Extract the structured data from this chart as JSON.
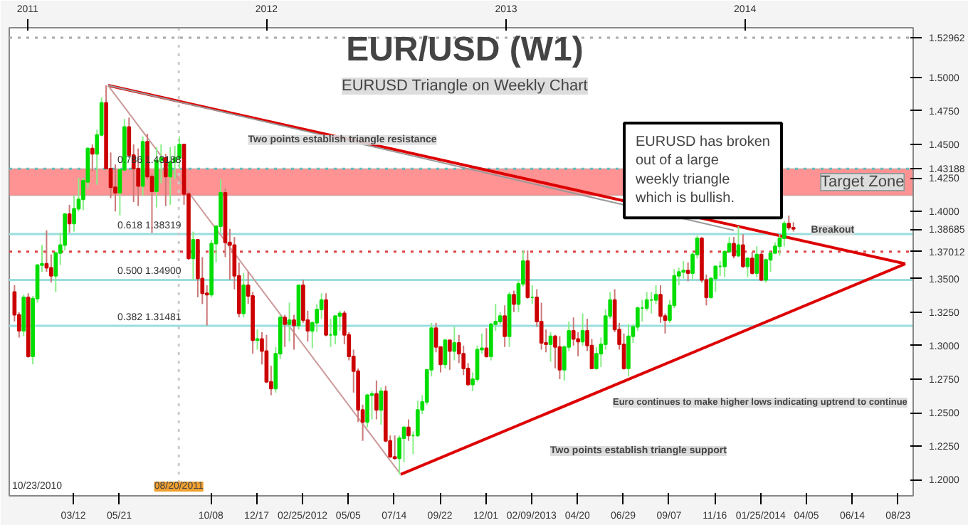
{
  "chart_data": {
    "type": "candlestick",
    "title": "EUR/USD (W1)",
    "subtitle": "EURUSD Triangle on Weekly Chart",
    "x": [
      "2010-12-12",
      "2010-12-19",
      "2010-12-26",
      "2011-01-02",
      "2011-01-09",
      "2011-01-16",
      "2011-01-23",
      "2011-01-30",
      "2011-02-06",
      "2011-02-13",
      "2011-02-20",
      "2011-02-27",
      "2011-03-06",
      "2011-03-13",
      "2011-03-20",
      "2011-03-27",
      "2011-04-03",
      "2011-04-10",
      "2011-04-17",
      "2011-04-24",
      "2011-05-01",
      "2011-05-08",
      "2011-05-15",
      "2011-05-22",
      "2011-05-29",
      "2011-06-05",
      "2011-06-12",
      "2011-06-19",
      "2011-06-26",
      "2011-07-03",
      "2011-07-10",
      "2011-07-17",
      "2011-07-24",
      "2011-07-31",
      "2011-08-07",
      "2011-08-14",
      "2011-08-21",
      "2011-08-28",
      "2011-09-04",
      "2011-09-11",
      "2011-09-18",
      "2011-09-25",
      "2011-10-02",
      "2011-10-09",
      "2011-10-16",
      "2011-10-23",
      "2011-10-30",
      "2011-11-06",
      "2011-11-13",
      "2011-11-20",
      "2011-11-27",
      "2011-12-04",
      "2011-12-11",
      "2011-12-18",
      "2011-12-25",
      "2012-01-01",
      "2012-01-08",
      "2012-01-15",
      "2012-01-22",
      "2012-01-29",
      "2012-02-05",
      "2012-02-12",
      "2012-02-19",
      "2012-02-26",
      "2012-03-04",
      "2012-03-11",
      "2012-03-18",
      "2012-03-25",
      "2012-04-01",
      "2012-04-08",
      "2012-04-15",
      "2012-04-22",
      "2012-04-29",
      "2012-05-06",
      "2012-05-13",
      "2012-05-20",
      "2012-05-27",
      "2012-06-03",
      "2012-06-10",
      "2012-06-17",
      "2012-06-24",
      "2012-07-01",
      "2012-07-08",
      "2012-07-15",
      "2012-07-22",
      "2012-07-29",
      "2012-08-05",
      "2012-08-12",
      "2012-08-19",
      "2012-08-26",
      "2012-09-02",
      "2012-09-09",
      "2012-09-16",
      "2012-09-23",
      "2012-09-30",
      "2012-10-07",
      "2012-10-14",
      "2012-10-21",
      "2012-10-28",
      "2012-11-04",
      "2012-11-11",
      "2012-11-18",
      "2012-11-25",
      "2012-12-02",
      "2012-12-09",
      "2012-12-16",
      "2012-12-23",
      "2012-12-30",
      "2013-01-06",
      "2013-01-13",
      "2013-01-20",
      "2013-01-27",
      "2013-02-03",
      "2013-02-10",
      "2013-02-17",
      "2013-02-24",
      "2013-03-03",
      "2013-03-10",
      "2013-03-17",
      "2013-03-24",
      "2013-03-31",
      "2013-04-07",
      "2013-04-14",
      "2013-04-21",
      "2013-04-28",
      "2013-05-05",
      "2013-05-12",
      "2013-05-19",
      "2013-05-26",
      "2013-06-02",
      "2013-06-09",
      "2013-06-16",
      "2013-06-23",
      "2013-06-30",
      "2013-07-07",
      "2013-07-14",
      "2013-07-21",
      "2013-07-28",
      "2013-08-04",
      "2013-08-11",
      "2013-08-18",
      "2013-08-25",
      "2013-09-01",
      "2013-09-08",
      "2013-09-15",
      "2013-09-22",
      "2013-09-29",
      "2013-10-06",
      "2013-10-13",
      "2013-10-20",
      "2013-10-27",
      "2013-11-03",
      "2013-11-10",
      "2013-11-17",
      "2013-11-24",
      "2013-12-01",
      "2013-12-08",
      "2013-12-15",
      "2013-12-22",
      "2013-12-29",
      "2014-01-05",
      "2014-01-12",
      "2014-01-19",
      "2014-01-26",
      "2014-02-02",
      "2014-02-09",
      "2014-02-16",
      "2014-02-23",
      "2014-03-02",
      "2014-03-09",
      "2014-03-16"
    ],
    "ohlc": [
      [
        1.34,
        1.345,
        1.318,
        1.323
      ],
      [
        1.323,
        1.325,
        1.306,
        1.311
      ],
      [
        1.311,
        1.338,
        1.307,
        1.336
      ],
      [
        1.336,
        1.339,
        1.291,
        1.292
      ],
      [
        1.292,
        1.337,
        1.286,
        1.335
      ],
      [
        1.335,
        1.361,
        1.332,
        1.36
      ],
      [
        1.36,
        1.375,
        1.355,
        1.361
      ],
      [
        1.361,
        1.386,
        1.355,
        1.358
      ],
      [
        1.358,
        1.368,
        1.347,
        1.352
      ],
      [
        1.352,
        1.37,
        1.34,
        1.369
      ],
      [
        1.369,
        1.384,
        1.36,
        1.375
      ],
      [
        1.375,
        1.399,
        1.371,
        1.398
      ],
      [
        1.398,
        1.405,
        1.384,
        1.391
      ],
      [
        1.391,
        1.412,
        1.385,
        1.402
      ],
      [
        1.402,
        1.425,
        1.4,
        1.409
      ],
      [
        1.409,
        1.425,
        1.401,
        1.423
      ],
      [
        1.422,
        1.448,
        1.417,
        1.447
      ],
      [
        1.447,
        1.45,
        1.43,
        1.443
      ],
      [
        1.443,
        1.461,
        1.42,
        1.457
      ],
      [
        1.457,
        1.485,
        1.456,
        1.481
      ],
      [
        1.481,
        1.494,
        1.432,
        1.432
      ],
      [
        1.432,
        1.444,
        1.41,
        1.418
      ],
      [
        1.418,
        1.435,
        1.4,
        1.414
      ],
      [
        1.414,
        1.432,
        1.397,
        1.431
      ],
      [
        1.431,
        1.469,
        1.43,
        1.463
      ],
      [
        1.463,
        1.47,
        1.44,
        1.442
      ],
      [
        1.442,
        1.45,
        1.407,
        1.432
      ],
      [
        1.432,
        1.447,
        1.404,
        1.419
      ],
      [
        1.419,
        1.456,
        1.412,
        1.452
      ],
      [
        1.452,
        1.458,
        1.424,
        1.426
      ],
      [
        1.426,
        1.428,
        1.384,
        1.415
      ],
      [
        1.415,
        1.448,
        1.403,
        1.438
      ],
      [
        1.438,
        1.45,
        1.421,
        1.44
      ],
      [
        1.44,
        1.443,
        1.404,
        1.426
      ],
      [
        1.426,
        1.448,
        1.405,
        1.437
      ],
      [
        1.437,
        1.449,
        1.424,
        1.44
      ],
      [
        1.44,
        1.456,
        1.432,
        1.45
      ],
      [
        1.45,
        1.45,
        1.405,
        1.413
      ],
      [
        1.413,
        1.414,
        1.364,
        1.365
      ],
      [
        1.365,
        1.385,
        1.349,
        1.379
      ],
      [
        1.379,
        1.379,
        1.336,
        1.35
      ],
      [
        1.35,
        1.366,
        1.331,
        1.339
      ],
      [
        1.339,
        1.345,
        1.315,
        1.338
      ],
      [
        1.338,
        1.379,
        1.336,
        1.376
      ],
      [
        1.376,
        1.389,
        1.362,
        1.389
      ],
      [
        1.389,
        1.424,
        1.384,
        1.414
      ],
      [
        1.414,
        1.417,
        1.366,
        1.377
      ],
      [
        1.377,
        1.387,
        1.349,
        1.375
      ],
      [
        1.375,
        1.381,
        1.342,
        1.352
      ],
      [
        1.352,
        1.362,
        1.321,
        1.324
      ],
      [
        1.324,
        1.354,
        1.321,
        1.345
      ],
      [
        1.345,
        1.355,
        1.331,
        1.337
      ],
      [
        1.337,
        1.34,
        1.294,
        1.304
      ],
      [
        1.304,
        1.312,
        1.297,
        1.305
      ],
      [
        1.305,
        1.31,
        1.286,
        1.296
      ],
      [
        1.296,
        1.308,
        1.272,
        1.273
      ],
      [
        1.273,
        1.285,
        1.263,
        1.268
      ],
      [
        1.268,
        1.299,
        1.265,
        1.294
      ],
      [
        1.294,
        1.323,
        1.29,
        1.321
      ],
      [
        1.321,
        1.323,
        1.299,
        1.316
      ],
      [
        1.316,
        1.332,
        1.303,
        1.319
      ],
      [
        1.319,
        1.323,
        1.297,
        1.315
      ],
      [
        1.315,
        1.345,
        1.312,
        1.345
      ],
      [
        1.345,
        1.349,
        1.317,
        1.319
      ],
      [
        1.319,
        1.326,
        1.303,
        1.311
      ],
      [
        1.311,
        1.318,
        1.298,
        1.317
      ],
      [
        1.317,
        1.331,
        1.31,
        1.327
      ],
      [
        1.327,
        1.339,
        1.32,
        1.334
      ],
      [
        1.334,
        1.339,
        1.307,
        1.308
      ],
      [
        1.308,
        1.32,
        1.299,
        1.308
      ],
      [
        1.308,
        1.322,
        1.301,
        1.322
      ],
      [
        1.322,
        1.326,
        1.311,
        1.324
      ],
      [
        1.324,
        1.326,
        1.301,
        1.308
      ],
      [
        1.308,
        1.31,
        1.289,
        1.292
      ],
      [
        1.292,
        1.297,
        1.265,
        1.281
      ],
      [
        1.281,
        1.283,
        1.243,
        1.252
      ],
      [
        1.252,
        1.256,
        1.229,
        1.243
      ],
      [
        1.243,
        1.264,
        1.239,
        1.263
      ],
      [
        1.263,
        1.266,
        1.245,
        1.264
      ],
      [
        1.264,
        1.274,
        1.245,
        1.252
      ],
      [
        1.252,
        1.269,
        1.241,
        1.266
      ],
      [
        1.266,
        1.27,
        1.228,
        1.229
      ],
      [
        1.229,
        1.233,
        1.217,
        1.217
      ],
      [
        1.217,
        1.233,
        1.215,
        1.216
      ],
      [
        1.216,
        1.233,
        1.204,
        1.231
      ],
      [
        1.231,
        1.24,
        1.213,
        1.239
      ],
      [
        1.239,
        1.245,
        1.229,
        1.233
      ],
      [
        1.233,
        1.236,
        1.219,
        1.233
      ],
      [
        1.233,
        1.259,
        1.232,
        1.252
      ],
      [
        1.252,
        1.263,
        1.249,
        1.258
      ],
      [
        1.258,
        1.282,
        1.256,
        1.282
      ],
      [
        1.282,
        1.317,
        1.277,
        1.313
      ],
      [
        1.313,
        1.317,
        1.295,
        1.299
      ],
      [
        1.299,
        1.299,
        1.28,
        1.286
      ],
      [
        1.286,
        1.305,
        1.283,
        1.304
      ],
      [
        1.304,
        1.304,
        1.282,
        1.296
      ],
      [
        1.296,
        1.314,
        1.289,
        1.302
      ],
      [
        1.302,
        1.308,
        1.287,
        1.294
      ],
      [
        1.294,
        1.3,
        1.278,
        1.283
      ],
      [
        1.283,
        1.287,
        1.27,
        1.271
      ],
      [
        1.271,
        1.28,
        1.266,
        1.275
      ],
      [
        1.275,
        1.3,
        1.273,
        1.297
      ],
      [
        1.297,
        1.309,
        1.294,
        1.298
      ],
      [
        1.298,
        1.313,
        1.291,
        1.292
      ],
      [
        1.292,
        1.317,
        1.289,
        1.316
      ],
      [
        1.316,
        1.331,
        1.311,
        1.318
      ],
      [
        1.318,
        1.325,
        1.316,
        1.322
      ],
      [
        1.322,
        1.33,
        1.299,
        1.307
      ],
      [
        1.307,
        1.34,
        1.299,
        1.338
      ],
      [
        1.338,
        1.341,
        1.325,
        1.331
      ],
      [
        1.331,
        1.349,
        1.325,
        1.346
      ],
      [
        1.346,
        1.371,
        1.344,
        1.363
      ],
      [
        1.363,
        1.371,
        1.335,
        1.336
      ],
      [
        1.336,
        1.345,
        1.331,
        1.336
      ],
      [
        1.336,
        1.342,
        1.314,
        1.318
      ],
      [
        1.318,
        1.332,
        1.297,
        1.302
      ],
      [
        1.302,
        1.312,
        1.295,
        1.301
      ],
      [
        1.301,
        1.31,
        1.288,
        1.307
      ],
      [
        1.307,
        1.308,
        1.283,
        1.299
      ],
      [
        1.299,
        1.307,
        1.275,
        1.282
      ],
      [
        1.282,
        1.3,
        1.274,
        1.299
      ],
      [
        1.299,
        1.318,
        1.296,
        1.311
      ],
      [
        1.311,
        1.321,
        1.3,
        1.305
      ],
      [
        1.305,
        1.31,
        1.292,
        1.303
      ],
      [
        1.303,
        1.324,
        1.3,
        1.311
      ],
      [
        1.311,
        1.32,
        1.296,
        1.3
      ],
      [
        1.3,
        1.305,
        1.283,
        1.283
      ],
      [
        1.283,
        1.299,
        1.282,
        1.294
      ],
      [
        1.294,
        1.306,
        1.284,
        1.301
      ],
      [
        1.301,
        1.327,
        1.297,
        1.322
      ],
      [
        1.322,
        1.34,
        1.32,
        1.334
      ],
      [
        1.334,
        1.342,
        1.31,
        1.312
      ],
      [
        1.312,
        1.317,
        1.297,
        1.301
      ],
      [
        1.301,
        1.309,
        1.282,
        1.283
      ],
      [
        1.283,
        1.316,
        1.277,
        1.307
      ],
      [
        1.307,
        1.316,
        1.302,
        1.314
      ],
      [
        1.314,
        1.329,
        1.311,
        1.328
      ],
      [
        1.328,
        1.334,
        1.318,
        1.328
      ],
      [
        1.328,
        1.34,
        1.326,
        1.334
      ],
      [
        1.334,
        1.34,
        1.324,
        1.334
      ],
      [
        1.334,
        1.345,
        1.331,
        1.338
      ],
      [
        1.338,
        1.345,
        1.317,
        1.322
      ],
      [
        1.322,
        1.324,
        1.309,
        1.319
      ],
      [
        1.319,
        1.334,
        1.317,
        1.33
      ],
      [
        1.33,
        1.357,
        1.328,
        1.352
      ],
      [
        1.352,
        1.358,
        1.345,
        1.355
      ],
      [
        1.355,
        1.363,
        1.35,
        1.356
      ],
      [
        1.356,
        1.362,
        1.348,
        1.354
      ],
      [
        1.354,
        1.37,
        1.349,
        1.368
      ],
      [
        1.368,
        1.382,
        1.365,
        1.38
      ],
      [
        1.38,
        1.381,
        1.347,
        1.349
      ],
      [
        1.349,
        1.353,
        1.33,
        1.336
      ],
      [
        1.336,
        1.351,
        1.335,
        1.35
      ],
      [
        1.35,
        1.36,
        1.34,
        1.359
      ],
      [
        1.359,
        1.363,
        1.352,
        1.359
      ],
      [
        1.359,
        1.371,
        1.351,
        1.37
      ],
      [
        1.37,
        1.381,
        1.369,
        1.376
      ],
      [
        1.376,
        1.381,
        1.365,
        1.367
      ],
      [
        1.367,
        1.389,
        1.366,
        1.375
      ],
      [
        1.375,
        1.383,
        1.358,
        1.359
      ],
      [
        1.359,
        1.366,
        1.351,
        1.365
      ],
      [
        1.365,
        1.37,
        1.353,
        1.354
      ],
      [
        1.354,
        1.374,
        1.351,
        1.368
      ],
      [
        1.368,
        1.371,
        1.348,
        1.349
      ],
      [
        1.349,
        1.365,
        1.347,
        1.364
      ],
      [
        1.364,
        1.37,
        1.355,
        1.369
      ],
      [
        1.369,
        1.377,
        1.369,
        1.374
      ],
      [
        1.374,
        1.383,
        1.367,
        1.38
      ],
      [
        1.38,
        1.393,
        1.374,
        1.391
      ],
      [
        1.391,
        1.397,
        1.386,
        1.388
      ],
      [
        1.388,
        1.392,
        1.385,
        1.387
      ]
    ],
    "series": [
      {
        "type": "line",
        "color": "#dd0000",
        "x": [
          "2011-05-04",
          "2014-09-03"
        ],
        "values": [
          1.494,
          1.361
        ]
      },
      {
        "type": "line",
        "color": "#dd0000",
        "x": [
          "2012-07-24",
          "2014-09-03"
        ],
        "values": [
          1.204,
          1.361
        ]
      },
      {
        "type": "line",
        "color": "#cc9999",
        "x": [
          "2011-05-04",
          "2012-07-24"
        ],
        "values": [
          1.494,
          1.204
        ]
      },
      {
        "type": "line",
        "color": "#999999",
        "x": [
          "2011-05-04",
          "2013-12-15"
        ],
        "values": [
          1.494,
          1.386
        ]
      }
    ],
    "xlim": [
      "2010-12-04",
      "2014-09-15"
    ],
    "xticks": [
      {
        "value": "2011-03-12",
        "label": "03/12"
      },
      {
        "value": "2011-05-21",
        "label": "05/21"
      },
      {
        "value": "2011-10-08",
        "label": "10/08"
      },
      {
        "value": "2011-12-17",
        "label": "12/17"
      },
      {
        "value": "2012-02-25",
        "label": "02/25/2012"
      },
      {
        "value": "2012-05-05",
        "label": "05/05"
      },
      {
        "value": "2012-07-14",
        "label": "07/14"
      },
      {
        "value": "2012-09-22",
        "label": "09/22"
      },
      {
        "value": "2012-12-01",
        "label": "12/01"
      },
      {
        "value": "2013-02-09",
        "label": "02/09/2013"
      },
      {
        "value": "2013-04-20",
        "label": "04/20"
      },
      {
        "value": "2013-06-29",
        "label": "06/29"
      },
      {
        "value": "2013-09-07",
        "label": "09/07"
      },
      {
        "value": "2013-11-16",
        "label": "11/16"
      },
      {
        "value": "2014-01-25",
        "label": "01/25/2014"
      },
      {
        "value": "2014-04-05",
        "label": "04/05"
      },
      {
        "value": "2014-06-14",
        "label": "06/14"
      },
      {
        "value": "2014-08-23",
        "label": "08/23"
      }
    ],
    "x2lim": [
      "2010-12-04",
      "2014-09-15"
    ],
    "x2ticks": [
      {
        "value": "2011-01-01",
        "label": "2011"
      },
      {
        "value": "2012-01-01",
        "label": "2012"
      },
      {
        "value": "2013-01-01",
        "label": "2013"
      },
      {
        "value": "2014-01-01",
        "label": "2014"
      }
    ],
    "ylim": [
      1.188,
      1.537
    ],
    "yticks": [
      {
        "value": 1.2,
        "label": "1.2000"
      },
      {
        "value": 1.225,
        "label": "1.2250"
      },
      {
        "value": 1.25,
        "label": "1.2500"
      },
      {
        "value": 1.275,
        "label": "1.2750"
      },
      {
        "value": 1.3,
        "label": "1.3000"
      },
      {
        "value": 1.325,
        "label": "1.3250"
      },
      {
        "value": 1.35,
        "label": "1.3500"
      },
      {
        "value": 1.37012,
        "label": "1.37012"
      },
      {
        "value": 1.38685,
        "label": "1.38685"
      },
      {
        "value": 1.4,
        "label": "1.4000"
      },
      {
        "value": 1.425,
        "label": "1.4250"
      },
      {
        "value": 1.43188,
        "label": "1.43188"
      },
      {
        "value": 1.45,
        "label": "1.4500"
      },
      {
        "value": 1.475,
        "label": "1.4750"
      },
      {
        "value": 1.5,
        "label": "1.5000"
      },
      {
        "value": 1.52962,
        "label": "1.52962"
      }
    ],
    "ref_lines": [
      {
        "axis": "y",
        "value": 1.52962,
        "label": null,
        "color": "#aaaaaa",
        "line_style": "dotted"
      },
      {
        "axis": "y",
        "value": 1.43188,
        "label": "0.786 1.43188",
        "color": "#66bbbb",
        "line_style": "dotted"
      },
      {
        "axis": "y",
        "value": 1.38319,
        "label": "0.618 1.38319",
        "color": "#99dddd",
        "line_style": "solid"
      },
      {
        "axis": "y",
        "value": 1.349,
        "label": "0.500 1.34900",
        "color": "#99dddd",
        "line_style": "solid"
      },
      {
        "axis": "y",
        "value": 1.31481,
        "label": "0.382 1.31481",
        "color": "#99dddd",
        "line_style": "solid"
      },
      {
        "axis": "y",
        "value": 1.37012,
        "label": null,
        "color": "#dd4444",
        "line_style": "dotted"
      },
      {
        "axis": "x",
        "value": "2011-08-20",
        "label": "08/20/2011",
        "color": "#cccccc",
        "line_style": "dotted"
      }
    ],
    "bands": [
      {
        "axis": "y",
        "from": 1.412,
        "to": 1.43188,
        "label": "Target Zone",
        "color": "#ff8080"
      }
    ],
    "annotations": [
      "EURUSD has broken out of a large weekly triangle which is bullish.",
      {
        "text": "Two points establish triangle resistance",
        "x": "2012-04-26",
        "y": 1.4533
      },
      "Two points establish triangle support",
      "Euro continues to make higher lows indicating uptrend to continue",
      "10/23/2010",
      {
        "text": "Breakout",
        "x": "2014-05-15",
        "y": 1.386
      }
    ],
    "grid": false
  }
}
